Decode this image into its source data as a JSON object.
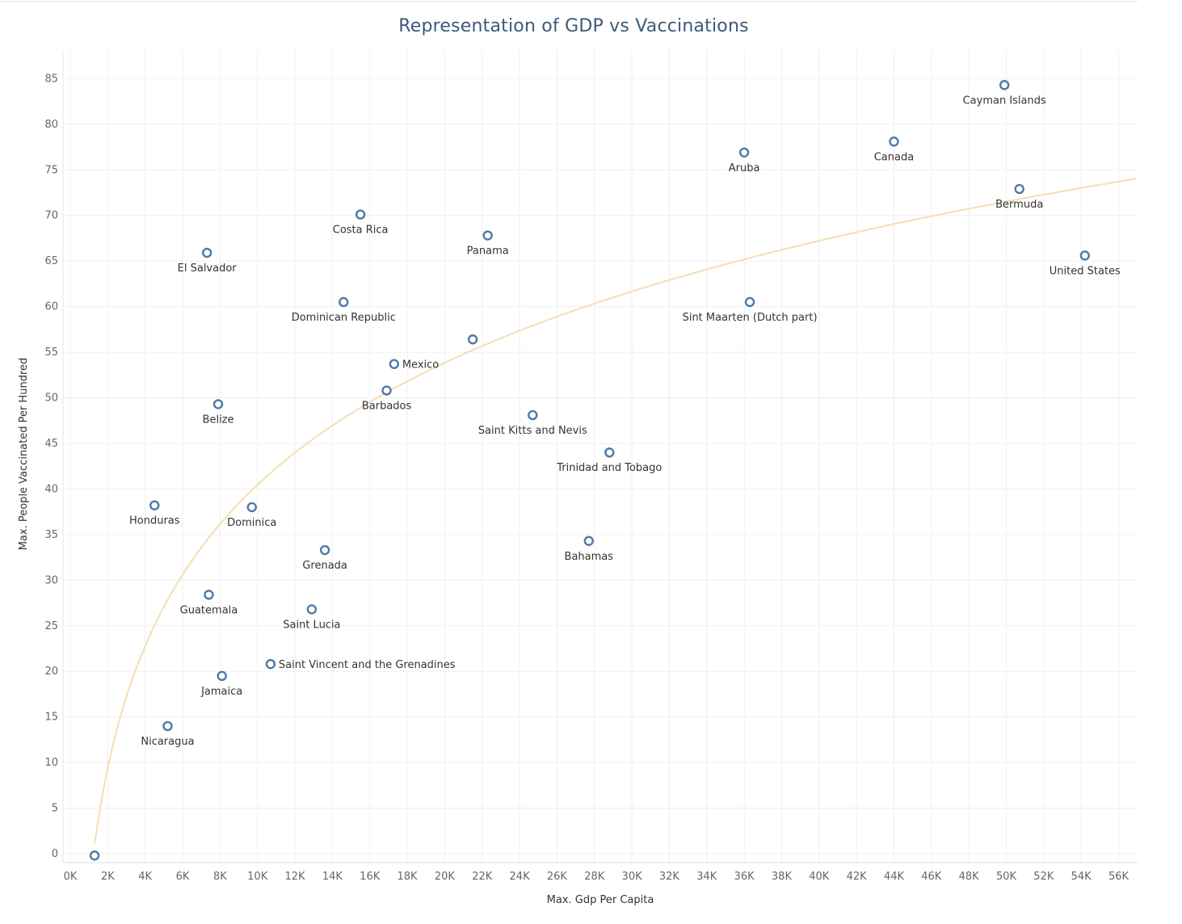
{
  "chart_data": {
    "type": "scatter",
    "title": "Representation of GDP vs Vaccinations",
    "xlabel": "Max. Gdp Per Capita",
    "ylabel": "Max. People Vaccinated Per Hundred",
    "xlim": [
      0,
      57000
    ],
    "ylim": [
      -1,
      86
    ],
    "x_ticks": [
      "0K",
      "2K",
      "4K",
      "6K",
      "8K",
      "10K",
      "12K",
      "14K",
      "16K",
      "18K",
      "20K",
      "22K",
      "24K",
      "26K",
      "28K",
      "30K",
      "32K",
      "34K",
      "36K",
      "38K",
      "40K",
      "42K",
      "44K",
      "46K",
      "48K",
      "50K",
      "52K",
      "54K",
      "56K"
    ],
    "y_ticks": [
      "0",
      "5",
      "10",
      "15",
      "20",
      "25",
      "30",
      "35",
      "40",
      "45",
      "50",
      "55",
      "60",
      "65",
      "70",
      "75",
      "80",
      "85"
    ],
    "grid": true,
    "marker_color": "#4e79a7",
    "trend_color": "#f5deb3",
    "trend_line": "logarithmic",
    "points": [
      {
        "label": "Cayman Islands",
        "x": 49900,
        "y": 84.3,
        "pos": "below"
      },
      {
        "label": "Canada",
        "x": 44000,
        "y": 78.1,
        "pos": "below"
      },
      {
        "label": "Aruba",
        "x": 36000,
        "y": 76.9,
        "pos": "below"
      },
      {
        "label": "Bermuda",
        "x": 50700,
        "y": 72.9,
        "pos": "below"
      },
      {
        "label": "Costa Rica",
        "x": 15500,
        "y": 70.1,
        "pos": "below"
      },
      {
        "label": "Panama",
        "x": 22300,
        "y": 67.8,
        "pos": "below"
      },
      {
        "label": "El Salvador",
        "x": 7300,
        "y": 65.9,
        "pos": "below"
      },
      {
        "label": "United States",
        "x": 54200,
        "y": 65.6,
        "pos": "below"
      },
      {
        "label": "Dominican Republic",
        "x": 14600,
        "y": 60.5,
        "pos": "below"
      },
      {
        "label": "Sint Maarten (Dutch part)",
        "x": 36300,
        "y": 60.5,
        "pos": "below"
      },
      {
        "label": "",
        "x": 21500,
        "y": 56.4,
        "pos": "none"
      },
      {
        "label": "Mexico",
        "x": 17300,
        "y": 53.7,
        "pos": "right"
      },
      {
        "label": "Barbados",
        "x": 16900,
        "y": 50.8,
        "pos": "below"
      },
      {
        "label": "Belize",
        "x": 7900,
        "y": 49.3,
        "pos": "below"
      },
      {
        "label": "Saint Kitts and Nevis",
        "x": 24700,
        "y": 48.1,
        "pos": "below"
      },
      {
        "label": "Trinidad and Tobago",
        "x": 28800,
        "y": 44.0,
        "pos": "below"
      },
      {
        "label": "Honduras",
        "x": 4500,
        "y": 38.2,
        "pos": "below"
      },
      {
        "label": "Dominica",
        "x": 9700,
        "y": 38.0,
        "pos": "below"
      },
      {
        "label": "Bahamas",
        "x": 27700,
        "y": 34.3,
        "pos": "below"
      },
      {
        "label": "Grenada",
        "x": 13600,
        "y": 33.3,
        "pos": "below"
      },
      {
        "label": "Guatemala",
        "x": 7400,
        "y": 28.4,
        "pos": "below"
      },
      {
        "label": "Saint Lucia",
        "x": 12900,
        "y": 26.8,
        "pos": "below"
      },
      {
        "label": "Saint Vincent and the Grenadines",
        "x": 10700,
        "y": 20.8,
        "pos": "right"
      },
      {
        "label": "Jamaica",
        "x": 8100,
        "y": 19.5,
        "pos": "below"
      },
      {
        "label": "Nicaragua",
        "x": 5200,
        "y": 14.0,
        "pos": "below"
      },
      {
        "label": "",
        "x": 1300,
        "y": -0.2,
        "pos": "none"
      }
    ]
  }
}
